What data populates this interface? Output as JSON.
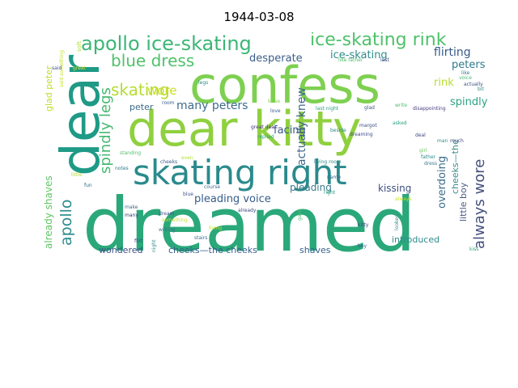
{
  "title": "1944-03-08",
  "words": [
    {
      "text": "dreamed",
      "color": "#2aa87a"
    },
    {
      "text": "dear kitty",
      "color": "#8fd03f"
    },
    {
      "text": "confess",
      "color": "#7ed050"
    },
    {
      "text": "dear",
      "color": "#1e9a86"
    },
    {
      "text": "skating right",
      "color": "#2a8a8c"
    },
    {
      "text": "apollo ice-skating",
      "color": "#3cb676"
    },
    {
      "text": "ice-skating rink",
      "color": "#4ec26a"
    },
    {
      "text": "blue dress",
      "color": "#4ec26a"
    },
    {
      "text": "skating",
      "color": "#b5dc30"
    },
    {
      "text": "apollo",
      "color": "#2f8c8c"
    },
    {
      "text": "spindly legs",
      "color": "#48b870"
    },
    {
      "text": "always wore",
      "color": "#46507e"
    },
    {
      "text": "actually knew",
      "color": "#40688a"
    },
    {
      "text": "wore",
      "color": "#c8df25"
    },
    {
      "text": "many peters",
      "color": "#3d6b8c"
    },
    {
      "text": "desperate",
      "color": "#3b5c8b"
    },
    {
      "text": "ice-skating",
      "color": "#2f8c8a"
    },
    {
      "text": "flirting",
      "color": "#36598a"
    },
    {
      "text": "peters",
      "color": "#2f7a8d"
    },
    {
      "text": "rink",
      "color": "#b8dc30"
    },
    {
      "text": "spindly",
      "color": "#2ba283"
    },
    {
      "text": "peter",
      "color": "#3a6a8c"
    },
    {
      "text": "facing",
      "color": "#3a578b"
    },
    {
      "text": "pleading voice",
      "color": "#355c8c"
    },
    {
      "text": "pleading",
      "color": "#3a7a8c"
    },
    {
      "text": "kissing",
      "color": "#3f4f80"
    },
    {
      "text": "overdoing",
      "color": "#3a6d8c"
    },
    {
      "text": "cheeks—the",
      "color": "#3a8c8a"
    },
    {
      "text": "little boy",
      "color": "#4a5a80"
    },
    {
      "text": "already shaves",
      "color": "#5ec462"
    },
    {
      "text": "glad peter",
      "color": "#c2dd2a"
    },
    {
      "text": "wondered",
      "color": "#3e4f88"
    },
    {
      "text": "cheeks—the cheeks",
      "color": "#345f8c"
    },
    {
      "text": "shaves",
      "color": "#33628c"
    },
    {
      "text": "introduced",
      "color": "#2f8c8c"
    },
    {
      "text": "soft",
      "color": "#aadc3a"
    },
    {
      "text": "said something",
      "color": "#c5df28"
    },
    {
      "text": "said",
      "color": "#3d5488"
    },
    {
      "text": "great",
      "color": "#d4e22a"
    },
    {
      "text": "like father",
      "color": "#4fbe6a"
    },
    {
      "text": "last",
      "color": "#3f4c80"
    },
    {
      "text": "like",
      "color": "#2f7a8c"
    },
    {
      "text": "voice",
      "color": "#44b872"
    },
    {
      "text": "actually",
      "color": "#3f4f80"
    },
    {
      "text": "disappointing",
      "color": "#4a3c80"
    },
    {
      "text": "bit",
      "color": "#2d8d8c"
    },
    {
      "text": "legs",
      "color": "#2a8f8b"
    },
    {
      "text": "kisse",
      "color": "#7fd04a"
    },
    {
      "text": "last night",
      "color": "#2aa082"
    },
    {
      "text": "glad",
      "color": "#3f5686"
    },
    {
      "text": "write",
      "color": "#4fbe6a"
    },
    {
      "text": "room",
      "color": "#3a5e8c"
    },
    {
      "text": "asked",
      "color": "#2aa082"
    },
    {
      "text": "margot",
      "color": "#3d4f86"
    },
    {
      "text": "deal",
      "color": "#3e4880"
    },
    {
      "text": "great deal",
      "color": "#46307a"
    },
    {
      "text": "beside",
      "color": "#2a8a8c"
    },
    {
      "text": "replied",
      "color": "#2aa082"
    },
    {
      "text": "love",
      "color": "#3a5a8c"
    },
    {
      "text": "man",
      "color": "#2f8c8a"
    },
    {
      "text": "much",
      "color": "#3e4880"
    },
    {
      "text": "living room",
      "color": "#2f8c8a"
    },
    {
      "text": "dreaming",
      "color": "#3e4c86"
    },
    {
      "text": "girl",
      "color": "#6ac85e"
    },
    {
      "text": "father",
      "color": "#2f8c8a"
    },
    {
      "text": "standing",
      "color": "#4fbe6a"
    },
    {
      "text": "cheeks",
      "color": "#3a5c8c"
    },
    {
      "text": "even",
      "color": "#b5dc30"
    },
    {
      "text": "name",
      "color": "#2f6a8c"
    },
    {
      "text": "right",
      "color": "#2aa082"
    },
    {
      "text": "dress",
      "color": "#3d7a8c"
    },
    {
      "text": "notes",
      "color": "#2f7a8c"
    },
    {
      "text": "little",
      "color": "#b5dc30"
    },
    {
      "text": "fun",
      "color": "#2f6a8c"
    },
    {
      "text": "blue",
      "color": "#3d5488"
    },
    {
      "text": "make",
      "color": "#3d6a8c"
    },
    {
      "text": "something",
      "color": "#c8df25"
    },
    {
      "text": "already",
      "color": "#3e4880"
    },
    {
      "text": "course",
      "color": "#3a6a8c"
    },
    {
      "text": "gave",
      "color": "#4fbe6a"
    },
    {
      "text": "kitty",
      "color": "#3e4880"
    },
    {
      "text": "always",
      "color": "#c8df25"
    },
    {
      "text": "looked",
      "color": "#3d8a8c"
    },
    {
      "text": "dream",
      "color": "#3d4f86"
    },
    {
      "text": "many",
      "color": "#2a3c70"
    },
    {
      "text": "writing",
      "color": "#3a6d8c"
    },
    {
      "text": "living",
      "color": "#c5df28"
    },
    {
      "text": "stairs",
      "color": "#3a6d8c"
    },
    {
      "text": "flirt",
      "color": "#3e4c86"
    },
    {
      "text": "night",
      "color": "#3a8c8a"
    },
    {
      "text": "boy",
      "color": "#3a5c8c"
    },
    {
      "text": "kiss",
      "color": "#2aa082"
    }
  ]
}
